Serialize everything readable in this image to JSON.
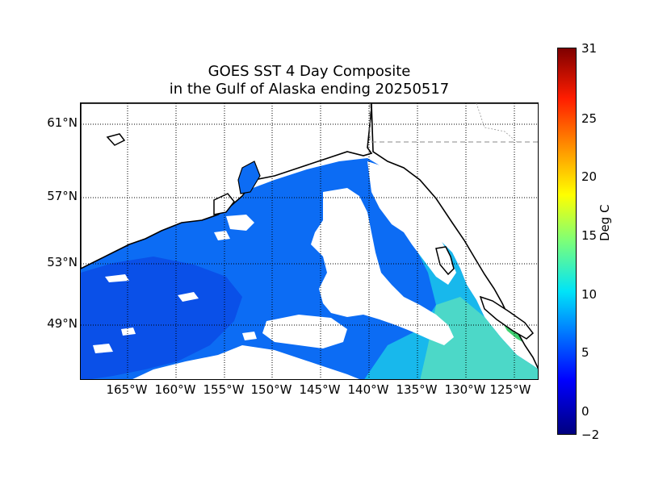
{
  "title": {
    "line1": "GOES SST 4 Day Composite",
    "line2": "in the Gulf of Alaska ending 20250517"
  },
  "map": {
    "lat_labels": [
      "61°N",
      "57°N",
      "53°N",
      "49°N"
    ],
    "lon_labels": [
      "165°W",
      "160°W",
      "155°W",
      "150°W",
      "145°W",
      "140°W",
      "135°W",
      "130°W",
      "125°W"
    ],
    "colors": {
      "ocean_main": "#0c6cf4",
      "ocean_west": "#0a50e8",
      "ocean_coastal": "#18b8ec",
      "ocean_southeast": "#4cd8c8",
      "nearshore_warm": "#40d070",
      "land": "#ffffff",
      "coastline": "#000000",
      "border": "#888888"
    }
  },
  "colorbar": {
    "label": "Deg C",
    "ticks": [
      "31",
      "25",
      "20",
      "15",
      "10",
      "5",
      "0",
      "−2"
    ],
    "min": -2,
    "max": 31,
    "colormap": "jet"
  }
}
